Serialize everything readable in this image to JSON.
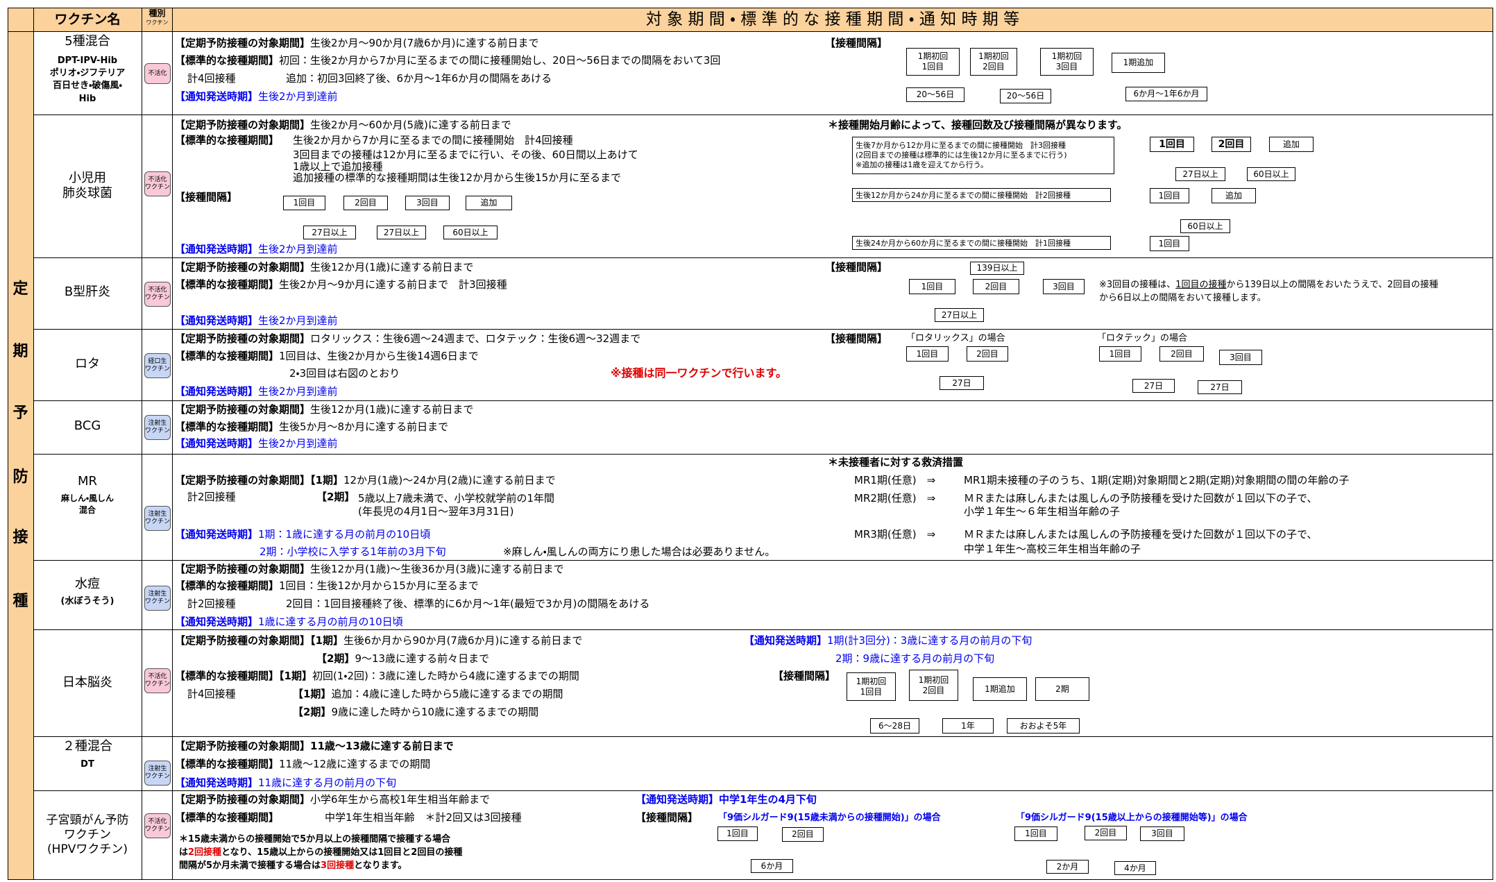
{
  "header": {
    "name": "ワクチン名",
    "kind": "種別",
    "kind_sub": "ワクチン",
    "period": "対 象 期 間 ・ 標 準 的 な 接 種 期 間 ・ 通 知 時 期 等"
  },
  "side_label": [
    "定",
    "期",
    "予",
    "防",
    "接",
    "種"
  ],
  "rows": [
    {
      "name": [
        "5種混合",
        "DPT-IPV-Hib",
        "ポリオ・ジフテリア",
        "百日せき・破傷風・",
        "Hib"
      ],
      "kind": [
        "不活化"
      ],
      "text": [
        "【定期予防接種の対象期間】",
        "生後2か月～90か月(7歳6か月)に達する前日まで",
        "【標準的な接種期間】",
        "初回：生後2か月から7か月に至るまでの間に接種開始し、20日～56日までの間隔をおいて3回",
        "計4回接種",
        "追加：初回3回終了後、6か月～1年6か月の間隔をあける",
        "【通知発送時期】",
        "生後2か月到達前"
      ],
      "diagram": [
        "【接種間隔】",
        "1期初回",
        "1回目",
        "1期初回",
        "2回目",
        "1期初回",
        "3回目",
        "1期追加",
        "20～56日",
        "20～56日",
        "6か月～1年6か月"
      ]
    },
    {
      "name": [
        "小児用",
        "肺炎球菌"
      ],
      "kind": [
        "不活化",
        "ワクチン"
      ],
      "text": [
        "【定期予防接種の対象期間】",
        "生後2か月～60か月(5歳)に達する前日まで",
        "【標準的な接種期間】",
        "生後2か月から7か月に至るまでの間に接種開始　計4回接種",
        "3回目までの接種は12か月に至るまでに行い、その後、60日間以上あけて",
        "1歳以上で追加接種",
        "追加接種の標準的な接種期間は生後12か月から生後15か月に至るまで",
        "【接種間隔】",
        "1回目",
        "2回目",
        "3回目",
        "追加",
        "27日以上",
        "27日以上",
        "60日以上",
        "【通知発送時期】",
        "生後2か月到達前"
      ],
      "diagram": [
        "＊接種開始月齢によって、接種回数及び接種間隔が異なります。",
        "生後7か月から12か月に至るまでの間に接種開始　計3回接種",
        "(2回目までの接種は標準的には生後12か月に至るまでに行う)",
        "※追加の接種は1歳を迎えてから行う。",
        "1回目",
        "2回目",
        "追加",
        "27日以上",
        "60日以上",
        "生後12か月から24か月に至るまでの間に接種開始　計2回接種",
        "1回目",
        "追加",
        "60日以上",
        "生後24か月から60か月に至るまでの間に接種開始　計1回接種",
        "1回目"
      ]
    },
    {
      "name": [
        "B型肝炎"
      ],
      "kind": [
        "不活化",
        "ワクチン"
      ],
      "text": [
        "【定期予防接種の対象期間】",
        "生後12か月(1歳)に達する前日まで",
        "【標準的な接種期間】",
        "生後2か月～9か月に達する前日まで　計3回接種",
        "【通知発送時期】",
        "生後2か月到達前"
      ],
      "diagram": [
        "【接種間隔】",
        "139日以上",
        "1回目",
        "2回目",
        "3回目",
        "27日以上",
        "※3回目の接種は、",
        "1回目の接種",
        "から139日以上の間隔をおいたうえで、2回目の接種",
        "から6日以上の間隔をおいて接種します。"
      ]
    },
    {
      "name": [
        "ロタ"
      ],
      "kind": [
        "経口生",
        "ワクチン"
      ],
      "text": [
        "【定期予防接種の対象期間】",
        "ロタリックス：生後6週～24週まで、ロタテック：生後6週～32週まで",
        "【標準的な接種期間】",
        "1回目は、生後2か月から生後14週6日まで",
        "2・3回目は右図のとおり",
        "※接種は同一ワクチンで行います。",
        "【通知発送時期】",
        "生後2か月到達前"
      ],
      "diagram": [
        "【接種間隔】",
        "「ロタリックス」の場合",
        "1回目",
        "2回目",
        "27日",
        "「ロタテック」の場合",
        "1回目",
        "2回目",
        "3回目",
        "27日",
        "27日"
      ]
    },
    {
      "name": [
        "BCG"
      ],
      "kind": [
        "注射生",
        "ワクチン"
      ],
      "text": [
        "【定期予防接種の対象期間】",
        "生後12か月(1歳)に達する前日まで",
        "【標準的な接種期間】",
        "生後5か月～8か月に達する前日まで",
        "【通知発送時期】",
        "生後2か月到達前"
      ]
    },
    {
      "name": [
        "MR",
        "麻しん・風しん",
        "混合"
      ],
      "kind": [
        "注射生",
        "ワクチン"
      ],
      "text": [
        "【定期予防接種の対象期間】",
        "【1期】",
        "12か月(1歳)～24か月(2歳)に達する前日まで",
        "計2回接種",
        "【2期】",
        "5歳以上7歳未満で、小学校就学前の1年間",
        "(年長児の4月1日～翌年3月31日)",
        "【通知発送時期】",
        "1期：1歳に達する月の前月の10日頃",
        "2期：小学校に入学する1年前の3月下旬",
        "※麻しん・風しんの両方にり患した場合は必要ありません。"
      ],
      "diagram": [
        "＊未接種者に対する救済措置",
        "MR1期(任意)　⇒",
        "MR1期未接種の子のうち、1期(定期)対象期間と2期(定期)対象期間の間の年齢の子",
        "MR2期(任意)　⇒",
        "ＭＲまたは麻しんまたは風しんの予防接種を受けた回数が１回以下の子で、",
        "小学１年生～６年生相当年齢の子",
        "MR3期(任意)　⇒",
        "ＭＲまたは麻しんまたは風しんの予防接種を受けた回数が１回以下の子で、",
        "中学１年生～高校三年生相当年齢の子"
      ]
    },
    {
      "name": [
        "水痘",
        "(水ぼうそう)"
      ],
      "kind": [
        "注射生",
        "ワクチン"
      ],
      "text": [
        "【定期予防接種の対象期間】",
        "生後12か月(1歳)～生後36か月(3歳)に達する前日まで",
        "【標準的な接種期間】",
        "1回目：生後12か月から15か月に至るまで",
        "計2回接種",
        "2回目：1回目接種終了後、標準的に6か月～1年(最短で3か月)の間隔をあける",
        "【通知発送時期】",
        "1歳に達する月の前月の10日頃"
      ]
    },
    {
      "name": [
        "日本脳炎"
      ],
      "kind": [
        "不活化",
        "ワクチン"
      ],
      "text": [
        "【定期予防接種の対象期間】",
        "【1期】",
        "生後6か月から90か月(7歳6か月)に達する前日まで",
        "【2期】",
        "9～13歳に達する前々日まで",
        "【標準的な接種期間】",
        "【1期】",
        "初回(1・2回)：3歳に達した時から4歳に達するまでの期間",
        "計4回接種",
        "【1期】",
        "追加：4歳に達した時から5歳に達するまでの期間",
        "【2期】",
        "9歳に達した時から10歳に達するまでの期間"
      ],
      "diagram": [
        "【通知発送時期】",
        "1期(計3回分)：3歳に達する月の前月の下旬",
        "2期：9歳に達する月の前月の下旬",
        "【接種間隔】",
        "1期初回",
        "1回目",
        "1期初回",
        "2回目",
        "1期追加",
        "2期",
        "6～28日",
        "1年",
        "おおよそ5年"
      ]
    },
    {
      "name": [
        "２種混合",
        "DT"
      ],
      "kind": [
        "注射生",
        "ワクチン"
      ],
      "text": [
        "【定期予防接種の対象期間】",
        "11歳～13歳に達する前日まで",
        "【標準的な接種期間】",
        "11歳～12歳に達するまでの期間",
        "【通知発送時期】",
        "11歳に達する月の前月の下旬"
      ]
    },
    {
      "name": [
        "子宮頸がん予防",
        "ワクチン",
        "(HPVワクチン)"
      ],
      "kind": [
        "不活化",
        "ワクチン"
      ],
      "text": [
        "【定期予防接種の対象期間】",
        "小学6年生から高校1年生相当年齢まで",
        "【標準的な接種期間】",
        "中学1年生相当年齢　＊計2回又は3回接種",
        "＊15歳未満からの接種開始で5か月以上の接種間隔で接種する場合",
        "は",
        "2回接種",
        "となり、15歳以上からの接種開始又は1回目と2回目の接種",
        "間隔が5か月未満で接種する場合は",
        "3回接種",
        "となります。"
      ],
      "diagram": [
        "【通知発送時期】",
        "中学1年生の4月下旬",
        "【接種間隔】",
        "「9価シルガード9(15歳未満からの接種開始)」の場合",
        "1回目",
        "2回目",
        "6か月",
        "「9価シルガード9(15歳以上からの接種開始等)」の場合",
        "1回目",
        "2回目",
        "3回目",
        "2か月",
        "4か月"
      ]
    }
  ]
}
